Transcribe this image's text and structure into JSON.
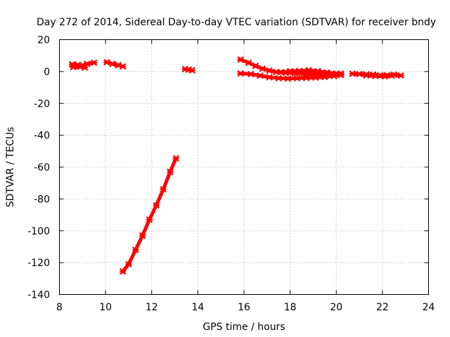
{
  "chart_data": {
    "type": "scatter",
    "title": "Day 272 of 2014, Sidereal Day-to-day VTEC variation (SDTVAR) for receiver bndy",
    "xlabel": "GPS time / hours",
    "ylabel": "SDTVAR / TECUs",
    "xlim": [
      8,
      24
    ],
    "ylim": [
      -140,
      20
    ],
    "xticks": [
      8,
      10,
      12,
      14,
      16,
      18,
      20,
      22,
      24
    ],
    "yticks": [
      20,
      0,
      -20,
      -40,
      -60,
      -80,
      -100,
      -120,
      -140
    ],
    "grid": true,
    "marker_color": "#ff0000",
    "series": [
      {
        "segments": [
          [
            [
              8.55,
              4.5
            ],
            [
              8.8,
              4.2
            ],
            [
              9.0,
              3.8
            ],
            [
              9.2,
              4.8
            ],
            [
              9.5,
              5.5
            ]
          ],
          [
            [
              8.6,
              2.8
            ],
            [
              8.9,
              3.0
            ],
            [
              9.1,
              2.5
            ]
          ],
          [
            [
              10.05,
              5.8
            ],
            [
              10.3,
              4.8
            ],
            [
              10.55,
              4.0
            ],
            [
              10.75,
              3.2
            ]
          ],
          [
            [
              13.45,
              1.5
            ],
            [
              13.6,
              1.2
            ],
            [
              13.75,
              0.8
            ]
          ],
          [
            [
              10.75,
              -125.5
            ],
            [
              11.0,
              -121
            ],
            [
              11.3,
              -112
            ],
            [
              11.6,
              -103
            ],
            [
              11.9,
              -93
            ],
            [
              12.2,
              -84
            ],
            [
              12.5,
              -74
            ],
            [
              12.8,
              -63
            ],
            [
              13.05,
              -54.5
            ]
          ],
          [
            [
              15.85,
              7.5
            ],
            [
              16.2,
              5.5
            ],
            [
              16.5,
              3.5
            ],
            [
              16.8,
              1.8
            ],
            [
              17.1,
              0.6
            ],
            [
              17.4,
              -0.3
            ],
            [
              17.8,
              -0.8
            ],
            [
              18.2,
              -1.0
            ],
            [
              18.6,
              -1.2
            ],
            [
              19.0,
              -1.5
            ],
            [
              19.4,
              -1.8
            ],
            [
              19.8,
              -1.6
            ],
            [
              20.2,
              -1.3
            ]
          ],
          [
            [
              15.85,
              -1.2
            ],
            [
              16.3,
              -1.6
            ],
            [
              16.7,
              -2.6
            ],
            [
              17.1,
              -3.6
            ],
            [
              17.5,
              -4.2
            ],
            [
              17.9,
              -4.4
            ],
            [
              18.3,
              -4.2
            ],
            [
              18.7,
              -4.0
            ],
            [
              19.1,
              -3.8
            ],
            [
              19.5,
              -3.4
            ],
            [
              19.9,
              -2.8
            ],
            [
              20.2,
              -2.2
            ]
          ],
          [
            [
              17.6,
              -0.4
            ],
            [
              18.0,
              0.2
            ],
            [
              18.4,
              0.4
            ],
            [
              18.8,
              0.8
            ],
            [
              19.2,
              0.2
            ],
            [
              19.6,
              -0.6
            ],
            [
              20.0,
              -1.2
            ]
          ],
          [
            [
              20.7,
              -1.4
            ],
            [
              21.0,
              -1.6
            ],
            [
              21.3,
              -1.8
            ],
            [
              21.6,
              -2.0
            ],
            [
              21.9,
              -2.4
            ],
            [
              22.2,
              -2.3
            ],
            [
              22.5,
              -2.0
            ],
            [
              22.8,
              -2.5
            ]
          ],
          [
            [
              21.3,
              -2.4
            ],
            [
              21.7,
              -2.8
            ],
            [
              22.1,
              -3.0
            ],
            [
              22.4,
              -2.6
            ]
          ]
        ]
      }
    ]
  }
}
